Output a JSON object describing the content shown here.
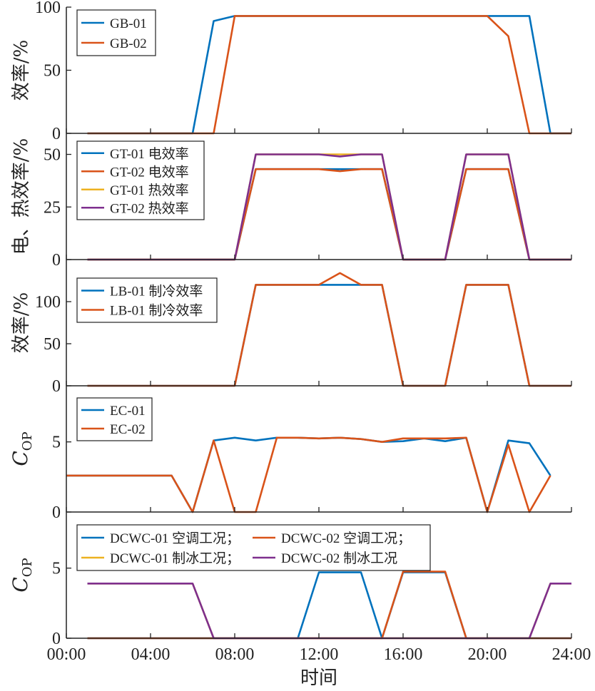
{
  "colors": {
    "blue": "#0072BD",
    "orange": "#D95319",
    "yellow": "#EDB120",
    "purple": "#7E2F8E"
  },
  "chart_data": [
    {
      "type": "line",
      "ylabel": "效率/%",
      "ylim": [
        0,
        100
      ],
      "yticks": [
        "0",
        "50",
        "100"
      ],
      "xlim": [
        0,
        24
      ],
      "legend_position": "top-left",
      "x": [
        1,
        2,
        3,
        4,
        5,
        6,
        7,
        8,
        9,
        10,
        11,
        12,
        13,
        14,
        15,
        16,
        17,
        18,
        19,
        20,
        21,
        22,
        23,
        24
      ],
      "series": [
        {
          "name": "GB-01",
          "color": "blue",
          "values": [
            0,
            0,
            0,
            0,
            0,
            0,
            89,
            93,
            93,
            93,
            93,
            93,
            93,
            93,
            93,
            93,
            93,
            93,
            93,
            93,
            93,
            93,
            0,
            0
          ]
        },
        {
          "name": "GB-02",
          "color": "orange",
          "values": [
            0,
            0,
            0,
            0,
            0,
            0,
            0,
            93,
            93,
            93,
            93,
            93,
            93,
            93,
            93,
            93,
            93,
            93,
            93,
            93,
            77,
            0,
            0,
            0
          ]
        }
      ]
    },
    {
      "type": "line",
      "ylabel": "电、热效率/%",
      "ylim": [
        0,
        60
      ],
      "yticks": [
        "0",
        "25",
        "50"
      ],
      "xlim": [
        0,
        24
      ],
      "legend_position": "top-left",
      "x": [
        1,
        2,
        3,
        4,
        5,
        6,
        7,
        8,
        9,
        10,
        11,
        12,
        13,
        14,
        15,
        16,
        17,
        18,
        19,
        20,
        21,
        22,
        23,
        24
      ],
      "series": [
        {
          "name": "GT-01 电效率",
          "color": "blue",
          "values": [
            0,
            0,
            0,
            0,
            0,
            0,
            0,
            0,
            43,
            43,
            43,
            43,
            43,
            43,
            43,
            0,
            0,
            0,
            43,
            43,
            43,
            0,
            0,
            0
          ]
        },
        {
          "name": "GT-02 电效率",
          "color": "orange",
          "values": [
            0,
            0,
            0,
            0,
            0,
            0,
            0,
            0,
            43,
            43,
            43,
            43,
            42,
            43,
            43,
            0,
            0,
            0,
            43,
            43,
            43,
            0,
            0,
            0
          ]
        },
        {
          "name": "GT-01 热效率",
          "color": "yellow",
          "values": [
            0,
            0,
            0,
            0,
            0,
            0,
            0,
            0,
            50,
            50,
            50,
            50,
            50,
            50,
            50,
            0,
            0,
            0,
            50,
            50,
            50,
            0,
            0,
            0
          ]
        },
        {
          "name": "GT-02 热效率",
          "color": "purple",
          "values": [
            0,
            0,
            0,
            0,
            0,
            0,
            0,
            0,
            50,
            50,
            50,
            50,
            49,
            50,
            50,
            0,
            0,
            0,
            50,
            50,
            50,
            0,
            0,
            0
          ]
        }
      ]
    },
    {
      "type": "line",
      "ylabel": "效率/%",
      "ylim": [
        0,
        150
      ],
      "yticks": [
        "0",
        "50",
        "100"
      ],
      "xlim": [
        0,
        24
      ],
      "legend_position": "top-left",
      "x": [
        1,
        2,
        3,
        4,
        5,
        6,
        7,
        8,
        9,
        10,
        11,
        12,
        13,
        14,
        15,
        16,
        17,
        18,
        19,
        20,
        21,
        22,
        23,
        24
      ],
      "series": [
        {
          "name": "LB-01 制冷效率",
          "color": "blue",
          "values": [
            0,
            0,
            0,
            0,
            0,
            0,
            0,
            0,
            120,
            120,
            120,
            120,
            120,
            120,
            120,
            0,
            0,
            0,
            120,
            120,
            120,
            0,
            0,
            0
          ]
        },
        {
          "name": "LB-01 制冷效率",
          "color": "orange",
          "values": [
            0,
            0,
            0,
            0,
            0,
            0,
            0,
            0,
            120,
            120,
            120,
            120,
            134,
            120,
            120,
            0,
            0,
            0,
            120,
            120,
            120,
            0,
            0,
            0
          ]
        }
      ]
    },
    {
      "type": "line",
      "ylabel": "C",
      "ylabel_sub": "OP",
      "ylim": [
        0,
        9
      ],
      "yticks": [
        "0",
        "5"
      ],
      "xlim": [
        0,
        24
      ],
      "legend_position": "top-left",
      "x": [
        0,
        1,
        2,
        3,
        4,
        5,
        6,
        7,
        8,
        9,
        10,
        11,
        12,
        13,
        14,
        15,
        16,
        17,
        18,
        19,
        20,
        21,
        22,
        23
      ],
      "series": [
        {
          "name": "EC-01",
          "color": "blue",
          "values": [
            2.6,
            2.6,
            2.6,
            2.6,
            2.6,
            2.6,
            0,
            5.1,
            5.3,
            5.1,
            5.3,
            5.3,
            5.25,
            5.3,
            5.2,
            5.0,
            5.05,
            5.25,
            5.05,
            5.3,
            0,
            5.1,
            4.9,
            2.6
          ]
        },
        {
          "name": "EC-02",
          "color": "orange",
          "values": [
            2.6,
            2.6,
            2.6,
            2.6,
            2.6,
            2.6,
            0,
            5.1,
            0,
            0,
            5.3,
            5.3,
            5.25,
            5.3,
            5.2,
            5.0,
            5.25,
            5.25,
            5.25,
            5.3,
            0,
            4.8,
            0,
            2.6
          ]
        }
      ]
    },
    {
      "type": "line",
      "ylabel": "C",
      "ylabel_sub": "OP",
      "ylim": [
        0,
        9
      ],
      "yticks": [
        "0",
        "5"
      ],
      "xlim": [
        0,
        24
      ],
      "legend_position": "top",
      "x": [
        1,
        2,
        3,
        4,
        5,
        6,
        7,
        8,
        9,
        10,
        11,
        12,
        13,
        14,
        15,
        16,
        17,
        18,
        19,
        20,
        21,
        22,
        23,
        24
      ],
      "series": [
        {
          "name": "DCWC-01 空调工况；",
          "color": "blue",
          "values": [
            0,
            0,
            0,
            0,
            0,
            0,
            0,
            0,
            0,
            0,
            0,
            4.7,
            4.7,
            4.7,
            0,
            4.7,
            4.7,
            4.7,
            0,
            0,
            0,
            0,
            0,
            0
          ]
        },
        {
          "name": "DCWC-02 空调工况；",
          "color": "orange",
          "values": [
            0,
            0,
            0,
            0,
            0,
            0,
            0,
            0,
            0,
            0,
            0,
            0,
            0,
            0,
            0,
            4.75,
            4.75,
            4.75,
            0,
            0,
            0,
            0,
            0,
            0
          ]
        },
        {
          "name": "DCWC-01 制冰工况；",
          "color": "yellow",
          "values": [
            3.9,
            3.9,
            3.9,
            3.9,
            3.9,
            3.9,
            0,
            0,
            0,
            0,
            0,
            0,
            0,
            0,
            0,
            0,
            0,
            0,
            0,
            0,
            0,
            0,
            3.9,
            3.9
          ]
        },
        {
          "name": "DCWC-02 制冰工况",
          "color": "purple",
          "values": [
            3.9,
            3.9,
            3.9,
            3.9,
            3.9,
            3.9,
            0,
            0,
            0,
            0,
            0,
            0,
            0,
            0,
            0,
            0,
            0,
            0,
            0,
            0,
            0,
            0,
            3.9,
            3.9
          ]
        }
      ]
    }
  ],
  "xaxis": {
    "label": "时间",
    "tick_labels": [
      "00:00",
      "04:00",
      "08:00",
      "12:00",
      "16:00",
      "20:00",
      "24:00"
    ],
    "tick_values": [
      0,
      4,
      8,
      12,
      16,
      20,
      24
    ]
  }
}
